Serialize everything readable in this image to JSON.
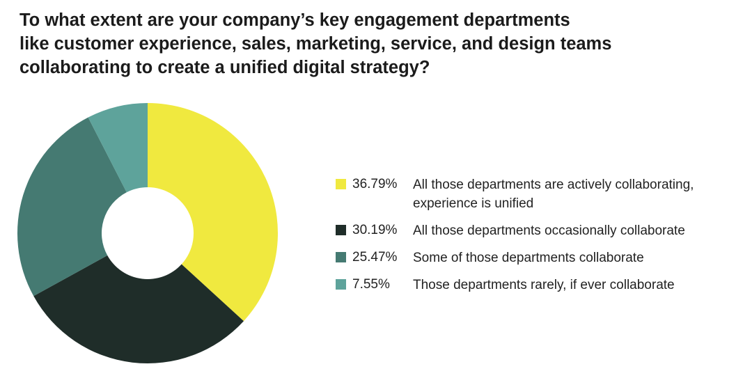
{
  "chart_data": {
    "type": "pie",
    "variant": "donut",
    "title_lines": [
      "To what extent are your company’s key engagement departments",
      "like customer experience, sales, marketing, service, and design teams",
      "collaborating to create a unified digital strategy?"
    ],
    "legend_position": "right",
    "slices": [
      {
        "value": 36.79,
        "value_label": "36.79%",
        "label_lines": [
          "All those departments are actively collaborating,",
          "experience is unified"
        ],
        "color": "#f0e93f"
      },
      {
        "value": 30.19,
        "value_label": "30.19%",
        "label_lines": [
          "All those departments occasionally collaborate"
        ],
        "color": "#1f2d29"
      },
      {
        "value": 25.47,
        "value_label": "25.47%",
        "label_lines": [
          "Some of those departments collaborate"
        ],
        "color": "#457a72"
      },
      {
        "value": 7.55,
        "value_label": "7.55%",
        "label_lines": [
          "Those departments rarely, if ever collaborate"
        ],
        "color": "#5ea39b"
      }
    ]
  }
}
